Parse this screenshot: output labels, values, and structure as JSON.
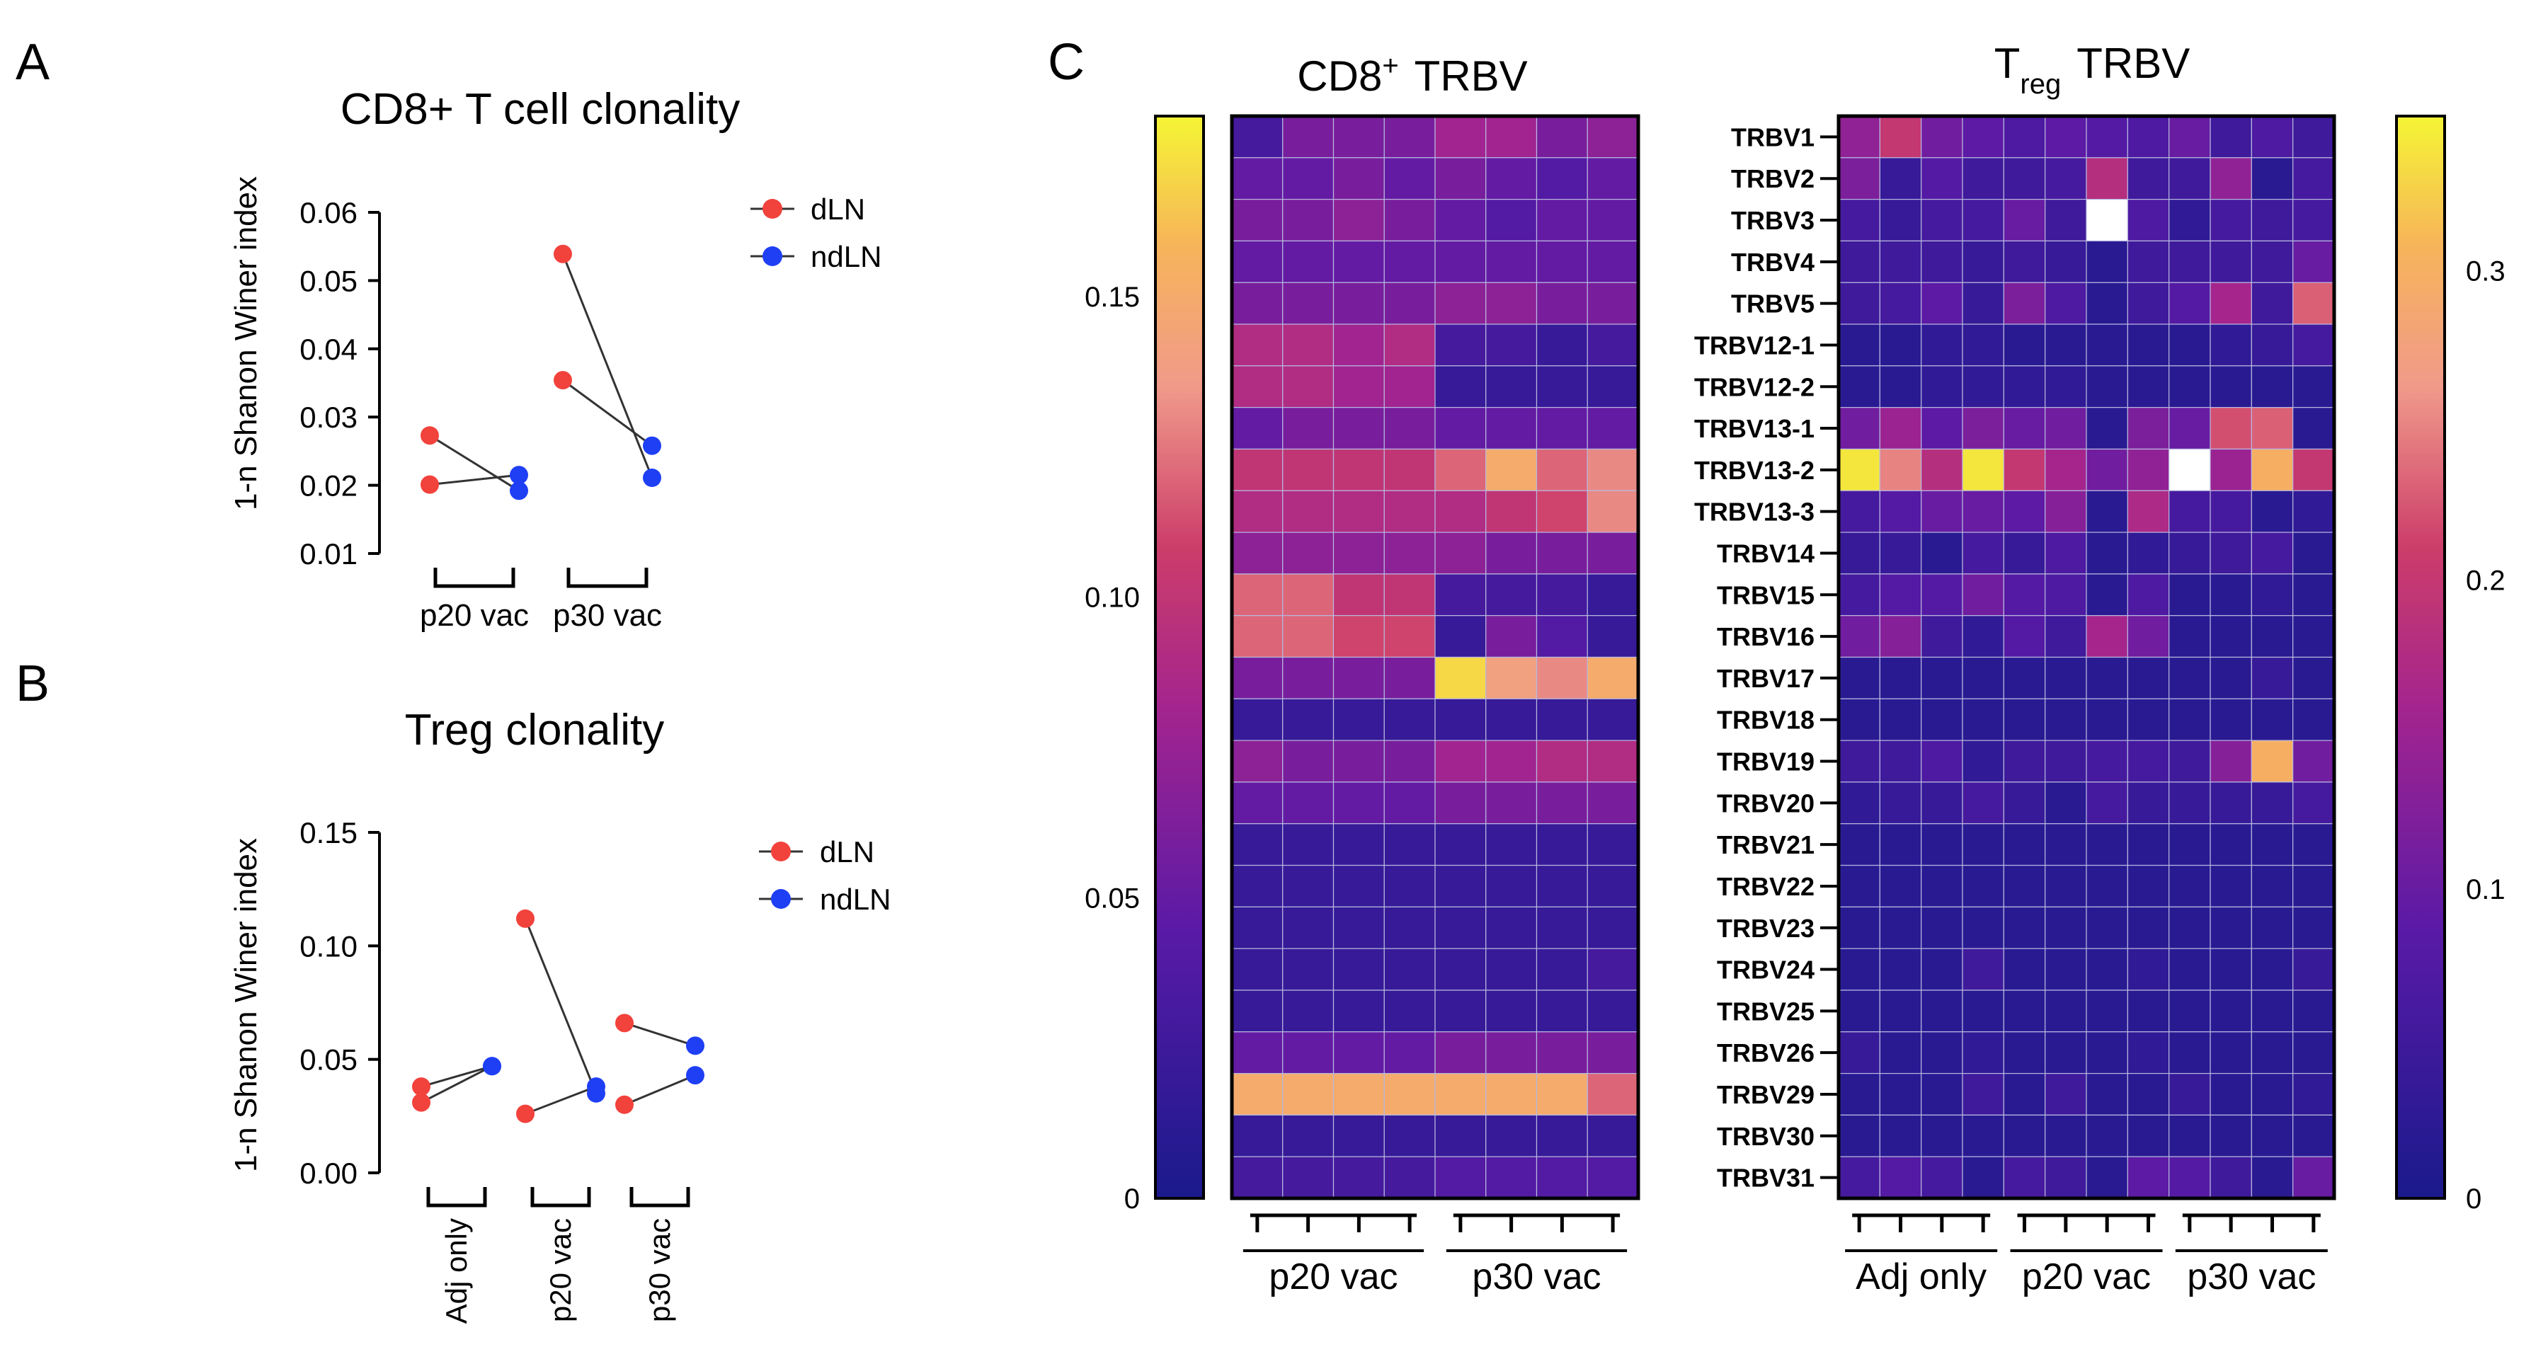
{
  "panels": {
    "a": {
      "letter": "A",
      "chart_data": {
        "type": "scatter",
        "title": "CD8+ T cell clonality",
        "ylabel": "1-n Shanon Winer index",
        "ylim": [
          0.01,
          0.06
        ],
        "yticks": [
          "0.06",
          "0.05",
          "0.04",
          "0.03",
          "0.02",
          "0.01"
        ],
        "groups": [
          "p20 vac",
          "p30 vac"
        ],
        "legend": [
          "dLN",
          "ndLN"
        ],
        "colors": {
          "dLN": "#f2423c",
          "ndLN": "#1f3ff5"
        },
        "pairs": [
          {
            "group": "p20 vac",
            "dLN": 0.0273,
            "ndLN": 0.0192
          },
          {
            "group": "p20 vac",
            "dLN": 0.0201,
            "ndLN": 0.0215
          },
          {
            "group": "p30 vac",
            "dLN": 0.0539,
            "ndLN": 0.0211
          },
          {
            "group": "p30 vac",
            "dLN": 0.0354,
            "ndLN": 0.0258
          }
        ]
      }
    },
    "b": {
      "letter": "B",
      "chart_data": {
        "type": "scatter",
        "title": "Treg clonality",
        "ylabel": "1-n Shanon Winer index",
        "ylim": [
          0,
          0.15
        ],
        "yticks": [
          "0.15",
          "0.10",
          "0.05",
          "0.00"
        ],
        "groups": [
          "Adj only",
          "p20 vac",
          "p30 vac"
        ],
        "legend": [
          "dLN",
          "ndLN"
        ],
        "colors": {
          "dLN": "#f2423c",
          "ndLN": "#1f3ff5"
        },
        "pairs": [
          {
            "group": "Adj only",
            "dLN": 0.038,
            "ndLN": 0.047
          },
          {
            "group": "Adj only",
            "dLN": 0.031,
            "ndLN": 0.047
          },
          {
            "group": "p20 vac",
            "dLN": 0.112,
            "ndLN": 0.035
          },
          {
            "group": "p20 vac",
            "dLN": 0.026,
            "ndLN": 0.038
          },
          {
            "group": "p30 vac",
            "dLN": 0.066,
            "ndLN": 0.056
          },
          {
            "group": "p30 vac",
            "dLN": 0.03,
            "ndLN": 0.043
          }
        ]
      }
    },
    "c": {
      "letter": "C",
      "cd8": {
        "chart_data": {
          "type": "heatmap",
          "title_main": "CD8",
          "title_sup": "+",
          "title_rest": "TRBV",
          "colorbar_ticks": [
            {
              "label": "0.15",
              "value": 0.15
            },
            {
              "label": "0.10",
              "value": 0.1
            },
            {
              "label": "0.05",
              "value": 0.05
            },
            {
              "label": "0",
              "value": 0
            }
          ],
          "vmin": 0,
          "vmax": 0.18,
          "x_groups": [
            {
              "label": "p20 vac",
              "cols": 4
            },
            {
              "label": "p30 vac",
              "cols": 4
            }
          ],
          "values": [
            [
              0.03,
              0.06,
              0.06,
              0.06,
              0.08,
              0.08,
              0.06,
              0.07
            ],
            [
              0.05,
              0.05,
              0.06,
              0.05,
              0.06,
              0.05,
              0.04,
              0.05
            ],
            [
              0.06,
              0.06,
              0.07,
              0.06,
              0.05,
              0.04,
              0.05,
              0.05
            ],
            [
              0.05,
              0.05,
              0.05,
              0.05,
              0.05,
              0.05,
              0.05,
              0.05
            ],
            [
              0.06,
              0.06,
              0.06,
              0.06,
              0.07,
              0.07,
              0.06,
              0.06
            ],
            [
              0.09,
              0.09,
              0.08,
              0.09,
              0.03,
              0.03,
              0.02,
              0.03
            ],
            [
              0.09,
              0.09,
              0.08,
              0.08,
              0.02,
              0.02,
              0.02,
              0.02
            ],
            [
              0.05,
              0.06,
              0.06,
              0.06,
              0.05,
              0.05,
              0.05,
              0.05
            ],
            [
              0.1,
              0.1,
              0.1,
              0.1,
              0.12,
              0.15,
              0.12,
              0.13
            ],
            [
              0.09,
              0.09,
              0.09,
              0.09,
              0.09,
              0.1,
              0.11,
              0.13
            ],
            [
              0.07,
              0.07,
              0.07,
              0.07,
              0.07,
              0.06,
              0.06,
              0.06
            ],
            [
              0.12,
              0.12,
              0.1,
              0.1,
              0.03,
              0.03,
              0.03,
              0.02
            ],
            [
              0.12,
              0.12,
              0.11,
              0.11,
              0.02,
              0.06,
              0.04,
              0.02
            ],
            [
              0.06,
              0.06,
              0.06,
              0.06,
              0.17,
              0.14,
              0.13,
              0.15
            ],
            [
              0.02,
              0.02,
              0.02,
              0.02,
              0.02,
              0.02,
              0.02,
              0.02
            ],
            [
              0.07,
              0.06,
              0.06,
              0.06,
              0.08,
              0.08,
              0.09,
              0.09
            ],
            [
              0.05,
              0.05,
              0.05,
              0.05,
              0.06,
              0.06,
              0.06,
              0.06
            ],
            [
              0.02,
              0.02,
              0.02,
              0.02,
              0.02,
              0.02,
              0.02,
              0.02
            ],
            [
              0.02,
              0.02,
              0.02,
              0.02,
              0.02,
              0.02,
              0.02,
              0.02
            ],
            [
              0.02,
              0.02,
              0.02,
              0.02,
              0.02,
              0.02,
              0.02,
              0.02
            ],
            [
              0.02,
              0.02,
              0.02,
              0.02,
              0.02,
              0.02,
              0.02,
              0.03
            ],
            [
              0.02,
              0.02,
              0.02,
              0.02,
              0.02,
              0.02,
              0.02,
              0.02
            ],
            [
              0.05,
              0.05,
              0.05,
              0.05,
              0.06,
              0.06,
              0.06,
              0.06
            ],
            [
              0.15,
              0.15,
              0.15,
              0.15,
              0.15,
              0.15,
              0.15,
              0.12
            ],
            [
              0.02,
              0.02,
              0.02,
              0.02,
              0.02,
              0.02,
              0.02,
              0.02
            ],
            [
              0.03,
              0.03,
              0.03,
              0.03,
              0.04,
              0.04,
              0.04,
              0.04
            ]
          ]
        }
      },
      "treg": {
        "chart_data": {
          "type": "heatmap",
          "title_main": "T",
          "title_sub": "reg",
          "title_rest": "TRBV",
          "colorbar_ticks": [
            {
              "label": "0.3",
              "value": 0.3
            },
            {
              "label": "0.2",
              "value": 0.2
            },
            {
              "label": "0.1",
              "value": 0.1
            },
            {
              "label": "0",
              "value": 0
            }
          ],
          "vmin": 0,
          "vmax": 0.35,
          "row_labels": [
            "TRBV1",
            "TRBV2",
            "TRBV3",
            "TRBV4",
            "TRBV5",
            "TRBV12-1",
            "TRBV12-2",
            "TRBV13-1",
            "TRBV13-2",
            "TRBV13-3",
            "TRBV14",
            "TRBV15",
            "TRBV16",
            "TRBV17",
            "TRBV18",
            "TRBV19",
            "TRBV20",
            "TRBV21",
            "TRBV22",
            "TRBV23",
            "TRBV24",
            "TRBV25",
            "TRBV26",
            "TRBV29",
            "TRBV30",
            "TRBV31"
          ],
          "x_groups": [
            {
              "label": "Adj only",
              "cols": 4
            },
            {
              "label": "p20 vac",
              "cols": 4
            },
            {
              "label": "p30 vac",
              "cols": 4
            }
          ],
          "values": [
            [
              0.14,
              0.2,
              0.11,
              0.09,
              0.07,
              0.09,
              0.08,
              0.07,
              0.1,
              0.05,
              0.07,
              0.05
            ],
            [
              0.12,
              0.04,
              0.08,
              0.05,
              0.05,
              0.06,
              0.18,
              0.05,
              0.05,
              0.14,
              0.02,
              0.06
            ],
            [
              0.06,
              0.04,
              0.06,
              0.06,
              0.1,
              0.05,
              null,
              0.07,
              0.03,
              0.06,
              0.05,
              0.06
            ],
            [
              0.05,
              0.05,
              0.05,
              0.04,
              0.05,
              0.04,
              0.02,
              0.05,
              0.05,
              0.05,
              0.05,
              0.1
            ],
            [
              0.05,
              0.06,
              0.09,
              0.04,
              0.12,
              0.07,
              0.02,
              0.05,
              0.08,
              0.16,
              0.05,
              0.23
            ],
            [
              0.02,
              0.02,
              0.03,
              0.03,
              0.02,
              0.02,
              0.02,
              0.02,
              0.02,
              0.03,
              0.04,
              0.06
            ],
            [
              0.02,
              0.02,
              0.03,
              0.03,
              0.03,
              0.03,
              0.02,
              0.02,
              0.02,
              0.02,
              0.02,
              0.02
            ],
            [
              0.11,
              0.15,
              0.09,
              0.12,
              0.1,
              0.11,
              0.02,
              0.12,
              0.1,
              0.22,
              0.23,
              0.02
            ],
            [
              0.34,
              0.25,
              0.18,
              0.34,
              0.2,
              0.16,
              0.11,
              0.14,
              null,
              0.15,
              0.3,
              0.2
            ],
            [
              0.06,
              0.08,
              0.1,
              0.1,
              0.09,
              0.13,
              0.02,
              0.17,
              0.06,
              0.06,
              0.02,
              0.03
            ],
            [
              0.04,
              0.04,
              0.02,
              0.06,
              0.04,
              0.07,
              0.02,
              0.03,
              0.04,
              0.05,
              0.06,
              0.02
            ],
            [
              0.06,
              0.08,
              0.08,
              0.11,
              0.08,
              0.07,
              0.02,
              0.07,
              0.02,
              0.02,
              0.03,
              0.02
            ],
            [
              0.11,
              0.13,
              0.05,
              0.03,
              0.08,
              0.05,
              0.16,
              0.11,
              0.02,
              0.02,
              0.02,
              0.02
            ],
            [
              0.02,
              0.02,
              0.02,
              0.02,
              0.02,
              0.02,
              0.02,
              0.02,
              0.02,
              0.02,
              0.04,
              0.02
            ],
            [
              0.02,
              0.02,
              0.02,
              0.02,
              0.02,
              0.02,
              0.02,
              0.02,
              0.02,
              0.02,
              0.02,
              0.02
            ],
            [
              0.05,
              0.05,
              0.07,
              0.03,
              0.05,
              0.05,
              0.06,
              0.06,
              0.05,
              0.13,
              0.3,
              0.11
            ],
            [
              0.03,
              0.04,
              0.04,
              0.06,
              0.04,
              0.02,
              0.06,
              0.04,
              0.04,
              0.04,
              0.04,
              0.06
            ],
            [
              0.02,
              0.02,
              0.02,
              0.02,
              0.02,
              0.02,
              0.02,
              0.02,
              0.02,
              0.02,
              0.02,
              0.02
            ],
            [
              0.02,
              0.02,
              0.02,
              0.02,
              0.02,
              0.02,
              0.02,
              0.02,
              0.02,
              0.02,
              0.02,
              0.02
            ],
            [
              0.02,
              0.02,
              0.02,
              0.02,
              0.02,
              0.02,
              0.02,
              0.02,
              0.02,
              0.02,
              0.02,
              0.02
            ],
            [
              0.02,
              0.02,
              0.02,
              0.05,
              0.02,
              0.02,
              0.02,
              0.03,
              0.02,
              0.02,
              0.02,
              0.04
            ],
            [
              0.02,
              0.02,
              0.02,
              0.02,
              0.02,
              0.02,
              0.02,
              0.02,
              0.02,
              0.02,
              0.02,
              0.02
            ],
            [
              0.04,
              0.02,
              0.02,
              0.03,
              0.02,
              0.02,
              0.02,
              0.03,
              0.02,
              0.02,
              0.02,
              0.02
            ],
            [
              0.02,
              0.02,
              0.02,
              0.05,
              0.02,
              0.05,
              0.02,
              0.02,
              0.04,
              0.02,
              0.02,
              0.03
            ],
            [
              0.02,
              0.02,
              0.02,
              0.02,
              0.02,
              0.02,
              0.02,
              0.02,
              0.02,
              0.02,
              0.02,
              0.02
            ],
            [
              0.06,
              0.08,
              0.06,
              0.02,
              0.06,
              0.05,
              0.02,
              0.09,
              0.08,
              0.05,
              0.02,
              0.1
            ]
          ]
        }
      }
    }
  }
}
